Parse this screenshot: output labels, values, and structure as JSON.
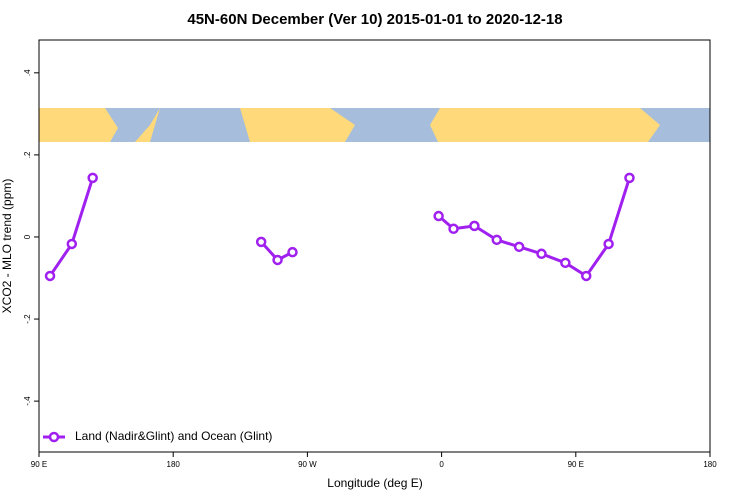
{
  "chart_data": {
    "type": "line",
    "title": "45N-60N December (Ver 10)   2015-01-01 to 2020-12-18",
    "x_label": "Longitude (deg E)",
    "y_label": "XCO2 - MLO trend (ppm)",
    "x": [
      97.4,
      112,
      126,
      null,
      239,
      250,
      260,
      null,
      358,
      368,
      382,
      397,
      412,
      427,
      443,
      457,
      472,
      486
    ],
    "series": [
      {
        "name": "Land (Nadir&Glint) and Ocean (Glint)",
        "color": "#a020f0",
        "values": [
          -0.095,
          -0.017,
          0.144,
          null,
          -0.012,
          -0.056,
          -0.037,
          null,
          0.051,
          0.02,
          0.027,
          -0.007,
          -0.024,
          -0.041,
          -0.063,
          -0.095,
          -0.017,
          0.144
        ]
      }
    ],
    "xlim": [
      90,
      540
    ],
    "xticks": [
      {
        "value": 90,
        "label": "90 E"
      },
      180,
      {
        "value": 270,
        "label": "90 W"
      },
      {
        "value": 360,
        "label": "0"
      },
      {
        "value": 450,
        "label": "90 E"
      },
      {
        "value": 540,
        "label": "180"
      }
    ],
    "ylim": [
      -0.524,
      0.48
    ],
    "yticks": [
      {
        "value": -0.4,
        "label": "-.4"
      },
      {
        "value": -0.2,
        "label": "-.2"
      },
      0,
      {
        "value": 0.2,
        "label": ".2"
      },
      {
        "value": 0.4,
        "label": ".4"
      }
    ],
    "legend": "bottom-left"
  }
}
